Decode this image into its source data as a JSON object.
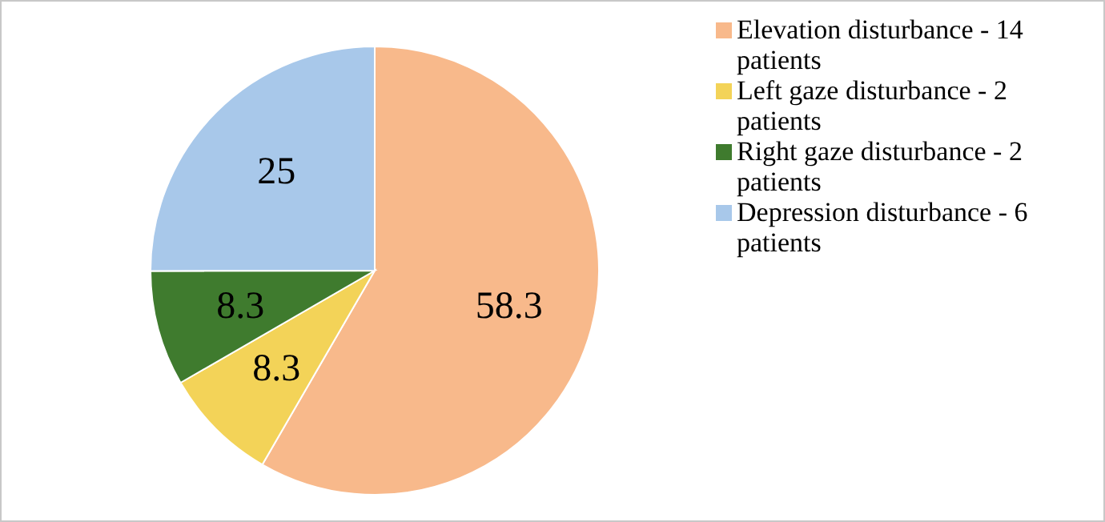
{
  "chart_data": {
    "type": "pie",
    "categories": [
      "Elevation disturbance - 14 patients",
      "Left gaze disturbance - 2 patients",
      "Right gaze disturbance - 2 patients",
      "Depression disturbance - 6 patients"
    ],
    "values": [
      58.3,
      8.3,
      8.3,
      25
    ],
    "colors": [
      "#f8b98b",
      "#f3d358",
      "#3f7b2e",
      "#a8c8ea"
    ],
    "data_labels": true,
    "legend": "top right"
  }
}
